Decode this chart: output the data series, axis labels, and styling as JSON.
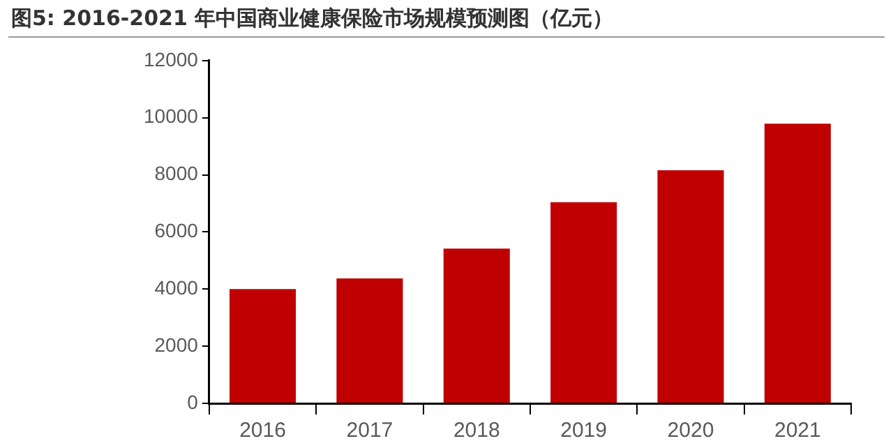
{
  "chart_data": {
    "type": "bar",
    "title": "图5: 2016-2021 年中国商业健康保险市场规模预测图（亿元）",
    "categories": [
      "2016",
      "2017",
      "2018",
      "2019",
      "2020",
      "2021"
    ],
    "values": [
      4000,
      4370,
      5420,
      7040,
      8160,
      9790
    ],
    "color": "#c00000",
    "ylim": [
      0,
      12000
    ],
    "yticks": [
      0,
      2000,
      4000,
      6000,
      8000,
      10000,
      12000
    ],
    "grid": false,
    "legend": false
  }
}
